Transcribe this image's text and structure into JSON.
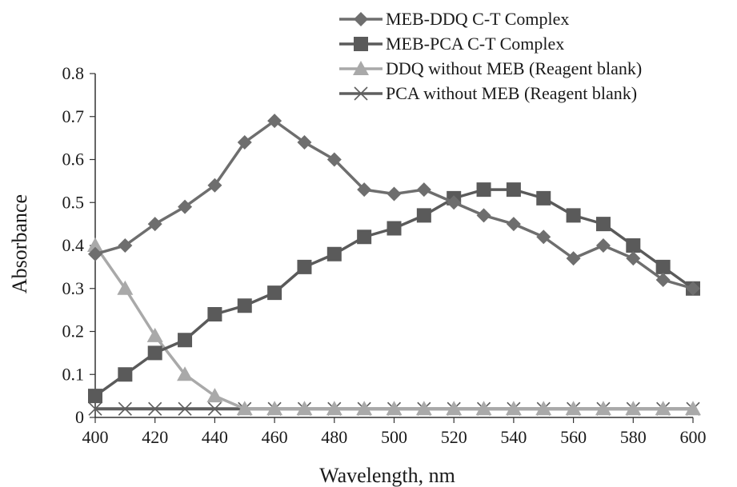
{
  "chart_data": {
    "type": "line",
    "title": "",
    "xlabel": "Wavelength,  nm",
    "ylabel": "Absorbance",
    "xlim": [
      400,
      600
    ],
    "ylim": [
      0,
      0.8
    ],
    "x_ticks": [
      400,
      420,
      440,
      460,
      480,
      500,
      520,
      540,
      560,
      580,
      600
    ],
    "y_ticks": [
      0,
      0.1,
      0.2,
      0.3,
      0.4,
      0.5,
      0.6,
      0.7,
      0.8
    ],
    "y_tick_labels": [
      "0",
      "0.1",
      "0.2",
      "0.3",
      "0.4",
      "0.5",
      "0.6",
      "0.7",
      "0.8"
    ],
    "grid": false,
    "legend_position": "top-right",
    "x": [
      400,
      410,
      420,
      430,
      440,
      450,
      460,
      470,
      480,
      490,
      500,
      510,
      520,
      530,
      540,
      550,
      560,
      570,
      580,
      590,
      600
    ],
    "series": [
      {
        "name": "MEB-DDQ C-T Complex",
        "marker": "diamond",
        "color": "#6e6e6e",
        "values": [
          0.38,
          0.4,
          0.45,
          0.49,
          0.54,
          0.64,
          0.69,
          0.64,
          0.6,
          0.53,
          0.52,
          0.53,
          0.5,
          0.47,
          0.45,
          0.42,
          0.37,
          0.4,
          0.37,
          0.32,
          0.3
        ]
      },
      {
        "name": "MEB-PCA C-T Complex",
        "marker": "square",
        "color": "#5a5a5a",
        "values": [
          0.05,
          0.1,
          0.15,
          0.18,
          0.24,
          0.26,
          0.29,
          0.35,
          0.38,
          0.42,
          0.44,
          0.47,
          0.51,
          0.53,
          0.53,
          0.51,
          0.47,
          0.45,
          0.4,
          0.35,
          0.3
        ]
      },
      {
        "name": "DDQ without MEB  (Reagent blank)",
        "marker": "triangle",
        "color": "#a9a9a9",
        "values": [
          0.4,
          0.3,
          0.19,
          0.1,
          0.05,
          0.02,
          0.02,
          0.02,
          0.02,
          0.02,
          0.02,
          0.02,
          0.02,
          0.02,
          0.02,
          0.02,
          0.02,
          0.02,
          0.02,
          0.02,
          0.02
        ]
      },
      {
        "name": "PCA without MEB  (Reagent blank)",
        "marker": "x",
        "color": "#5f5f5f",
        "values": [
          0.02,
          0.02,
          0.02,
          0.02,
          0.02,
          0.02,
          0.02,
          0.02,
          0.02,
          0.02,
          0.02,
          0.02,
          0.02,
          0.02,
          0.02,
          0.02,
          0.02,
          0.02,
          0.02,
          0.02,
          0.02
        ]
      }
    ]
  }
}
